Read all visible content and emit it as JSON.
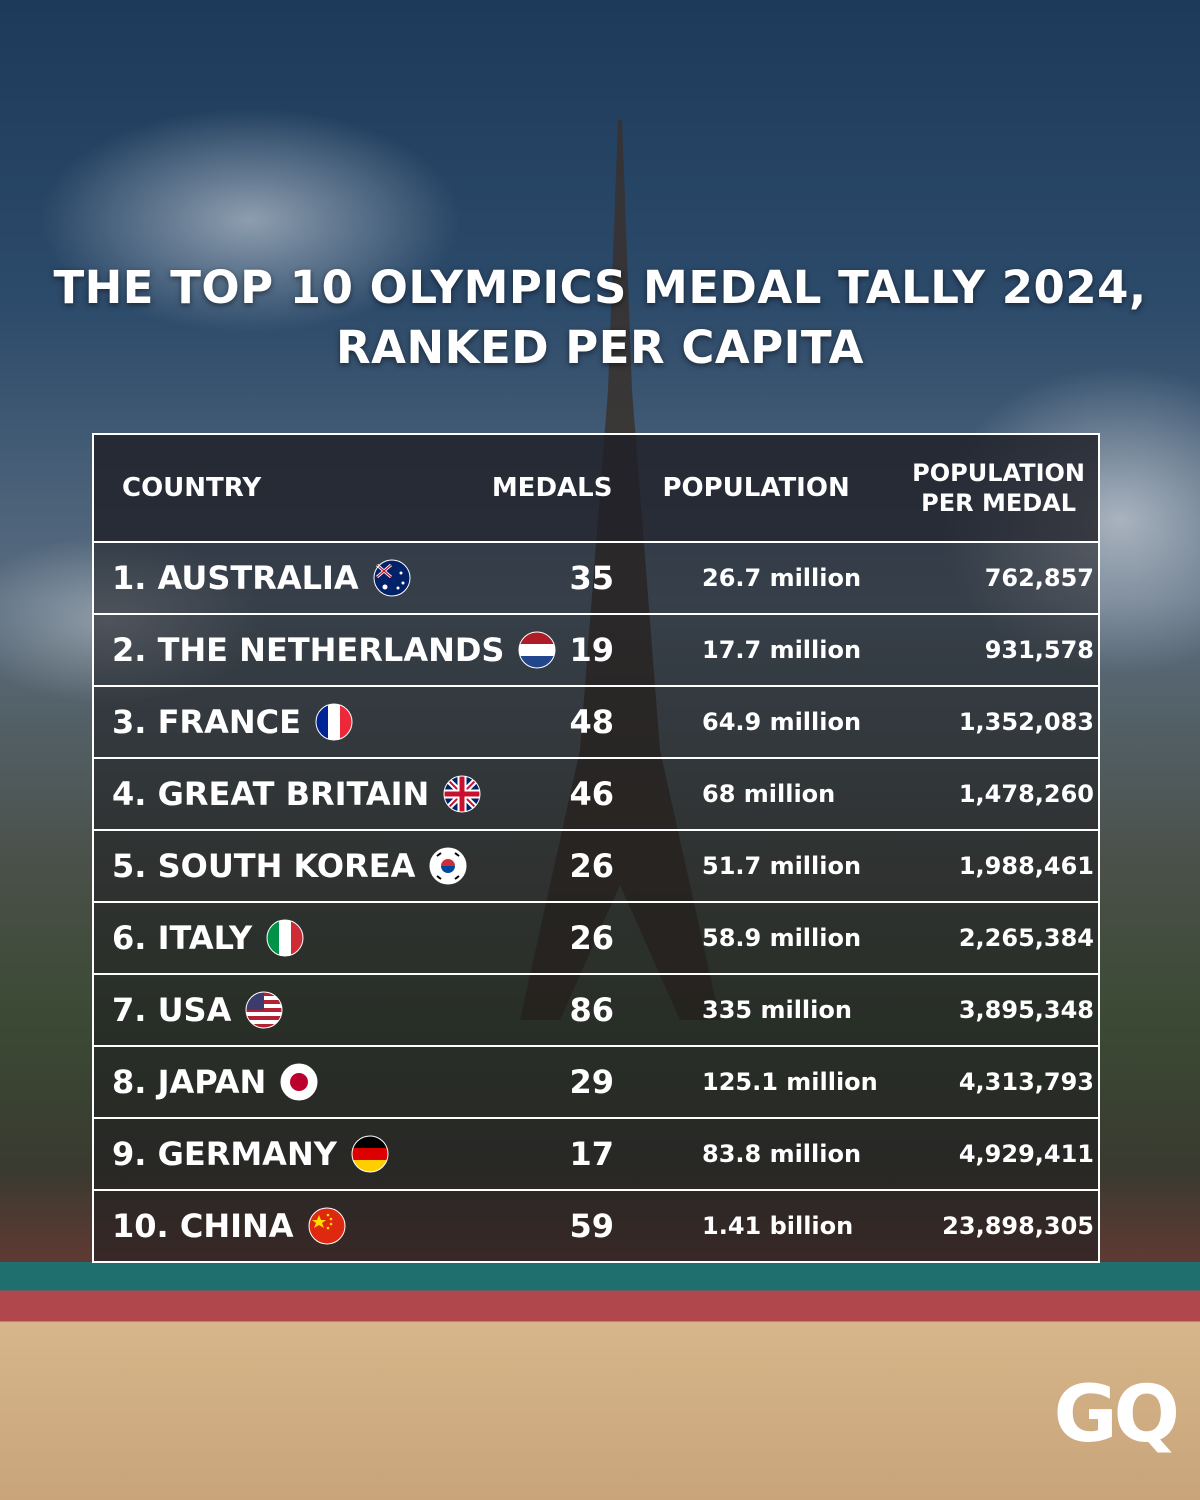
{
  "header": {
    "title_lines": [
      "THE TOP 10 OLYMPICS MEDAL TALLY 2024,",
      "RANKED PER CAPITA"
    ]
  },
  "table": {
    "columns": [
      "COUNTRY",
      "MEDALS",
      "POPULATION",
      "POPULATION PER MEDAL"
    ],
    "rows": [
      [
        "1. AUSTRALIA",
        35,
        "26.7 million",
        "762,857"
      ],
      [
        "2. THE NETHERLANDS",
        19,
        "17.7 million",
        "931,578"
      ],
      [
        "3. FRANCE",
        48,
        "64.9 million",
        "1,352,083"
      ],
      [
        "4. GREAT BRITAIN",
        46,
        "68 million",
        "1,478,260"
      ],
      [
        "5. SOUTH KOREA",
        26,
        "51.7 million",
        "1,988,461"
      ],
      [
        "6. ITALY",
        26,
        "58.9 million",
        "2,265,384"
      ],
      [
        "7. USA",
        86,
        "335 million",
        "3,895,348"
      ],
      [
        "8. JAPAN",
        29,
        "125.1 million",
        "4,313,793"
      ],
      [
        "9. GERMANY",
        17,
        "83.8 million",
        "4,929,411"
      ],
      [
        "10. CHINA",
        59,
        "1.41 billion",
        "23,898,305"
      ]
    ]
  },
  "logo": "GQ"
}
